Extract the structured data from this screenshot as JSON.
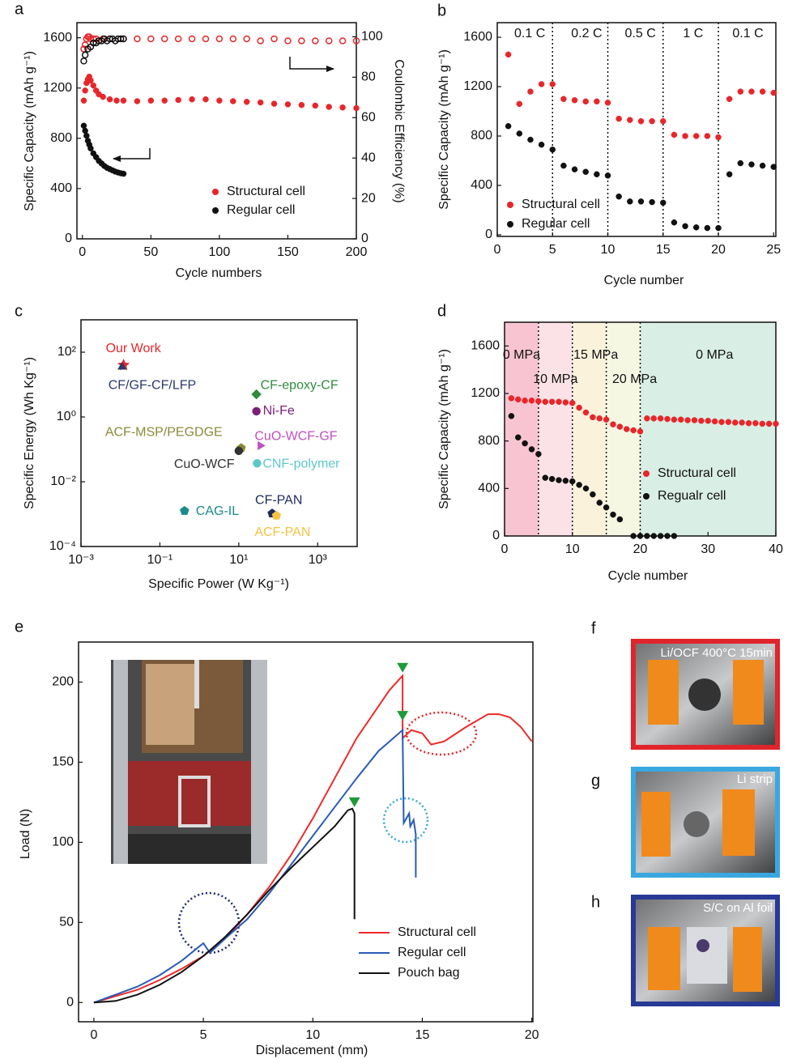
{
  "chart_data": [
    {
      "type": "scatter",
      "label": "a",
      "xlabel": "Cycle numbers",
      "ylabel": "Specific Capacity (mAh g⁻¹)",
      "y2label": "Coulombic Efficiency (%)",
      "xlim": [
        -4,
        200
      ],
      "ylim": [
        0,
        1720
      ],
      "y2lim": [
        0,
        107
      ],
      "xticks": [
        0,
        50,
        100,
        150,
        200
      ],
      "yticks": [
        0,
        400,
        800,
        1200,
        1600
      ],
      "y2ticks": [
        0,
        20,
        40,
        60,
        80,
        100
      ],
      "series": [
        {
          "name": "Structural cell",
          "color": "#e8262a",
          "x": [
            1,
            2,
            3,
            4,
            5,
            6,
            8,
            10,
            12,
            15,
            20,
            25,
            30,
            40,
            50,
            60,
            70,
            80,
            90,
            100,
            110,
            120,
            130,
            140,
            150,
            160,
            170,
            180,
            190,
            200
          ],
          "values": [
            1100,
            1180,
            1240,
            1270,
            1290,
            1260,
            1220,
            1180,
            1150,
            1130,
            1110,
            1100,
            1100,
            1095,
            1100,
            1100,
            1105,
            1110,
            1110,
            1100,
            1095,
            1090,
            1085,
            1075,
            1070,
            1065,
            1060,
            1050,
            1045,
            1040
          ]
        },
        {
          "name": "Regular cell",
          "color": "#111111",
          "x": [
            1,
            2,
            3,
            4,
            5,
            6,
            8,
            10,
            12,
            14,
            16,
            18,
            20,
            22,
            24,
            26,
            28,
            30
          ],
          "values": [
            900,
            860,
            820,
            780,
            750,
            720,
            680,
            650,
            620,
            600,
            580,
            565,
            555,
            545,
            535,
            528,
            522,
            518
          ]
        },
        {
          "color": "#e8262a",
          "axis": "y2",
          "hollow": true,
          "x": [
            1,
            2,
            3,
            4,
            5,
            6,
            8,
            10,
            15,
            20,
            30,
            40,
            50,
            60,
            70,
            80,
            90,
            100,
            110,
            120,
            130,
            140,
            150,
            160,
            170,
            180,
            190,
            200
          ],
          "values": [
            94,
            96,
            99,
            100,
            100,
            99,
            99,
            99,
            99,
            99,
            99,
            99,
            99,
            99,
            99,
            99,
            99,
            99,
            99,
            99,
            98,
            99,
            98,
            98,
            98,
            98,
            98,
            98
          ]
        },
        {
          "color": "#111111",
          "axis": "y2",
          "hollow": true,
          "x": [
            1,
            2,
            4,
            6,
            8,
            10,
            12,
            14,
            16,
            18,
            20,
            22,
            24,
            26,
            28,
            30
          ],
          "values": [
            88,
            91,
            94,
            95,
            97,
            97,
            98,
            98,
            99,
            98,
            99,
            99,
            98,
            99,
            99,
            99
          ]
        }
      ]
    },
    {
      "type": "scatter",
      "label": "b",
      "xlabel": "Cycle number",
      "ylabel": "Specific Capacity (mAh g⁻¹)",
      "xlim": [
        0,
        25.2
      ],
      "ylim": [
        -13,
        1718
      ],
      "xticks": [
        0,
        5,
        10,
        15,
        20,
        25
      ],
      "yticks": [
        0,
        400,
        800,
        1200,
        1600
      ],
      "dividers": [
        5,
        10,
        15,
        20
      ],
      "segment_labels": [
        "0.1 C",
        "0.2 C",
        "0.5 C",
        "1 C",
        "0.1 C"
      ],
      "series": [
        {
          "name": "Structural cell",
          "color": "#e8262a",
          "x": [
            1,
            2,
            3,
            4,
            5,
            6,
            7,
            8,
            9,
            10,
            11,
            12,
            13,
            14,
            15,
            16,
            17,
            18,
            19,
            20,
            21,
            22,
            23,
            24,
            25
          ],
          "values": [
            1460,
            1060,
            1160,
            1220,
            1220,
            1100,
            1090,
            1080,
            1080,
            1070,
            940,
            930,
            920,
            920,
            920,
            810,
            800,
            800,
            800,
            790,
            1100,
            1160,
            1160,
            1160,
            1150
          ]
        },
        {
          "name": "Regular cell",
          "color": "#111111",
          "x": [
            1,
            2,
            3,
            4,
            5,
            6,
            7,
            8,
            9,
            10,
            11,
            12,
            13,
            14,
            15,
            16,
            17,
            18,
            19,
            20,
            21,
            22,
            23,
            24,
            25
          ],
          "values": [
            880,
            820,
            770,
            730,
            690,
            560,
            530,
            510,
            490,
            480,
            310,
            270,
            270,
            265,
            260,
            100,
            70,
            60,
            55,
            55,
            490,
            580,
            570,
            560,
            550
          ]
        }
      ]
    },
    {
      "type": "scatter",
      "label": "c",
      "xlabel": "Specific Power (W Kg⁻¹)",
      "ylabel": "Specific Energy (Wh Kg⁻¹)",
      "xscale": "log",
      "yscale": "log",
      "xlim": [
        0.001,
        10000
      ],
      "ylim": [
        0.0001,
        1000
      ],
      "xticks": [
        {
          "value": 0.001,
          "label": "10⁻³"
        },
        {
          "value": 0.1,
          "label": "10⁻¹"
        },
        {
          "value": 10,
          "label": "10¹"
        },
        {
          "value": 1000,
          "label": "10³"
        }
      ],
      "yticks": [
        {
          "value": 0.0001,
          "label": "10⁻⁴"
        },
        {
          "value": 0.01,
          "label": "10⁻²"
        },
        {
          "value": 1,
          "label": "10⁰"
        },
        {
          "value": 100,
          "label": "10²"
        }
      ],
      "series": [
        {
          "name": "Our Work",
          "color": "#e3262c",
          "marker": "star",
          "x": [
            0.012
          ],
          "values": [
            40
          ]
        },
        {
          "name": "CF/GF-CF/LFP",
          "color": "#2b3a6b",
          "marker": "triangle",
          "x": [
            0.011
          ],
          "values": [
            35
          ]
        },
        {
          "name": "CF-epoxy-CF",
          "color": "#2e8b3e",
          "marker": "diamond",
          "x": [
            28
          ],
          "values": [
            5
          ]
        },
        {
          "name": "Ni-Fe",
          "color": "#7b1f7a",
          "marker": "circle",
          "x": [
            28
          ],
          "values": [
            1.5
          ]
        },
        {
          "name": "ACF-MSP/PEGDGE",
          "color": "#8a8a3a",
          "marker": "pentagon",
          "x": [
            11.5
          ],
          "values": [
            0.11
          ]
        },
        {
          "name": "CuO-WCF-GF",
          "color": "#c050c0",
          "marker": "triangle-right",
          "x": [
            35
          ],
          "values": [
            0.13
          ]
        },
        {
          "name": "CuO-WCF",
          "color": "#333333",
          "marker": "circle",
          "x": [
            10
          ],
          "values": [
            0.09
          ]
        },
        {
          "name": "CNF-polymer",
          "color": "#5cc8c8",
          "marker": "circle",
          "x": [
            29
          ],
          "values": [
            0.037
          ]
        },
        {
          "name": "CAG-IL",
          "color": "#1a8a8a",
          "marker": "pentagon",
          "x": [
            0.42
          ],
          "values": [
            0.00126
          ]
        },
        {
          "name": "CF-PAN",
          "color": "#1c2a5c",
          "marker": "pentagon",
          "x": [
            70
          ],
          "values": [
            0.00105
          ]
        },
        {
          "name": "ACF-PAN",
          "color": "#f5c242",
          "marker": "pentagon",
          "x": [
            90
          ],
          "values": [
            0.0009
          ]
        }
      ]
    },
    {
      "type": "scatter",
      "label": "d",
      "xlabel": "Cycle number",
      "ylabel": "Specific Capacity (mAh g⁻¹)",
      "xlim": [
        0,
        40
      ],
      "ylim": [
        0,
        1800
      ],
      "xticks": [
        0,
        10,
        20,
        30,
        40
      ],
      "yticks": [
        0,
        400,
        800,
        1200,
        1600
      ],
      "regions": [
        {
          "x": [
            0,
            5
          ],
          "color": "#f8c4d1"
        },
        {
          "x": [
            5,
            10
          ],
          "color": "#fbe2e6"
        },
        {
          "x": [
            10,
            15
          ],
          "color": "#fbf2dc"
        },
        {
          "x": [
            15,
            20
          ],
          "color": "#f6f7e3"
        },
        {
          "x": [
            20,
            40
          ],
          "color": "#d9eee4"
        }
      ],
      "dividers": [
        5,
        10,
        15,
        20
      ],
      "segment_labels": [
        "0 MPa",
        "10 MPa",
        "15 MPa",
        "20 MPa",
        "0 MPa"
      ],
      "series": [
        {
          "name": "Structural cell",
          "color": "#e8262a",
          "x": [
            1,
            2,
            3,
            4,
            5,
            6,
            7,
            8,
            9,
            10,
            11,
            12,
            13,
            14,
            15,
            16,
            17,
            18,
            19,
            20,
            21,
            22,
            23,
            24,
            25,
            26,
            27,
            28,
            29,
            30,
            31,
            32,
            33,
            34,
            35,
            36,
            37,
            38,
            39,
            40
          ],
          "values": [
            1160,
            1150,
            1140,
            1140,
            1135,
            1130,
            1130,
            1130,
            1125,
            1120,
            1080,
            1040,
            1000,
            990,
            980,
            940,
            920,
            900,
            890,
            880,
            990,
            990,
            990,
            985,
            980,
            980,
            975,
            975,
            970,
            970,
            965,
            960,
            960,
            955,
            955,
            950,
            950,
            945,
            945,
            945
          ]
        },
        {
          "name": "Regualr cell",
          "color": "#111111",
          "x": [
            1,
            2,
            3,
            4,
            5,
            6,
            7,
            8,
            9,
            10,
            11,
            12,
            13,
            14,
            15,
            16,
            17,
            19,
            20,
            21,
            22,
            23,
            24,
            25
          ],
          "values": [
            1010,
            830,
            780,
            730,
            690,
            490,
            480,
            470,
            465,
            460,
            430,
            400,
            350,
            280,
            240,
            180,
            140,
            0,
            0,
            0,
            0,
            0,
            0,
            0
          ]
        }
      ]
    },
    {
      "type": "line",
      "label": "e",
      "xlabel": "Displacement (mm)",
      "ylabel": "Load (N)",
      "xlim": [
        -0.7,
        20.05
      ],
      "ylim": [
        -12,
        225
      ],
      "xticks": [
        0,
        5,
        10,
        15,
        20
      ],
      "yticks": [
        0,
        50,
        100,
        150,
        200
      ],
      "series": [
        {
          "name": "Structural cell",
          "color": "#ee2a2a",
          "x": [
            0,
            1,
            2,
            3,
            4,
            5,
            6,
            7,
            8,
            9,
            10,
            11,
            12,
            13,
            13.5,
            14.1,
            14.1,
            14.5,
            15,
            15.4,
            16,
            17,
            18,
            18.5,
            19,
            19.5,
            20
          ],
          "values": [
            0,
            4,
            8,
            14,
            21,
            29,
            40,
            55,
            72,
            92,
            115,
            140,
            165,
            185,
            195,
            204,
            165,
            170,
            168,
            161,
            163,
            172,
            180,
            180,
            178,
            172,
            163
          ]
        },
        {
          "name": "Regular cell",
          "color": "#2a5bb5",
          "x": [
            0,
            1,
            2,
            3,
            4,
            5,
            5.3,
            6,
            7,
            8,
            9,
            10,
            11,
            12,
            13,
            14.1,
            14.15,
            14.4,
            14.45,
            14.6,
            14.7,
            14.7
          ],
          "values": [
            0,
            5,
            10,
            17,
            26,
            37,
            31,
            40,
            52,
            68,
            86,
            104,
            122,
            140,
            157,
            170,
            112,
            118,
            110,
            114,
            105,
            78
          ]
        },
        {
          "name": "Pouch bag",
          "color": "#111111",
          "x": [
            0,
            1,
            2,
            3,
            4,
            5,
            6,
            7,
            8,
            9,
            10,
            11,
            11.6,
            11.8,
            11.9,
            11.9
          ],
          "values": [
            0,
            1,
            5,
            11,
            19,
            29,
            41,
            55,
            70,
            84,
            97,
            110,
            120,
            121,
            118,
            52
          ]
        }
      ],
      "failure_markers": {
        "color": "#1e9a3a",
        "x": [
          14.1,
          14.1,
          11.9
        ],
        "values": [
          210,
          180,
          126
        ]
      }
    }
  ],
  "photos": [
    {
      "label": "f",
      "caption": "Li/OCF 400°C 15min"
    },
    {
      "label": "g",
      "caption": "Li strip"
    },
    {
      "label": "h",
      "caption": "S/C on Al foil"
    }
  ]
}
